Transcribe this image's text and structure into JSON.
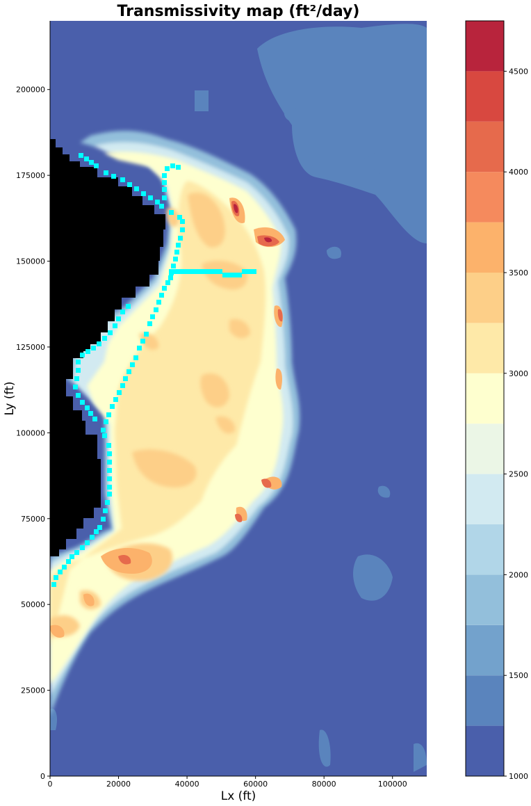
{
  "chart_data": {
    "type": "heatmap",
    "title": "Transmissivity map (ft²/day)",
    "xlabel": "Lx (ft)",
    "ylabel": "Ly (ft)",
    "xlim": [
      0,
      110000
    ],
    "ylim": [
      0,
      220000
    ],
    "x_ticks": [
      0,
      20000,
      40000,
      60000,
      80000,
      100000
    ],
    "y_ticks": [
      0,
      25000,
      50000,
      75000,
      100000,
      125000,
      150000,
      175000,
      200000
    ],
    "colorbar": {
      "min": 1000,
      "max": 4750,
      "levels": [
        1000,
        1250,
        1500,
        1750,
        2000,
        2250,
        2500,
        2750,
        3000,
        3250,
        3500,
        3750,
        4000,
        4250,
        4500,
        4750
      ],
      "tick_values": [
        1000,
        1500,
        2000,
        2500,
        3000,
        3500,
        4000,
        4500
      ],
      "colors": [
        "#4a5fab",
        "#5a84bd",
        "#73a2cc",
        "#93bfdb",
        "#b1d6e8",
        "#d2eaf1",
        "#ebf6e6",
        "#feffcf",
        "#fee9a8",
        "#fdcf88",
        "#fcb26b",
        "#f58a5d",
        "#e66a4c",
        "#d84840",
        "#b8243c"
      ]
    },
    "grid": false,
    "inactive_region_color": "#000000",
    "boundary_marker_color": "#00ffff",
    "field_description": "Transmissivity ranges mostly 1000-1250 outside the aquifer; inside the aquifer body values are ~2750-3500 with local highs up to ~4500 near x=55000,y=165000."
  }
}
